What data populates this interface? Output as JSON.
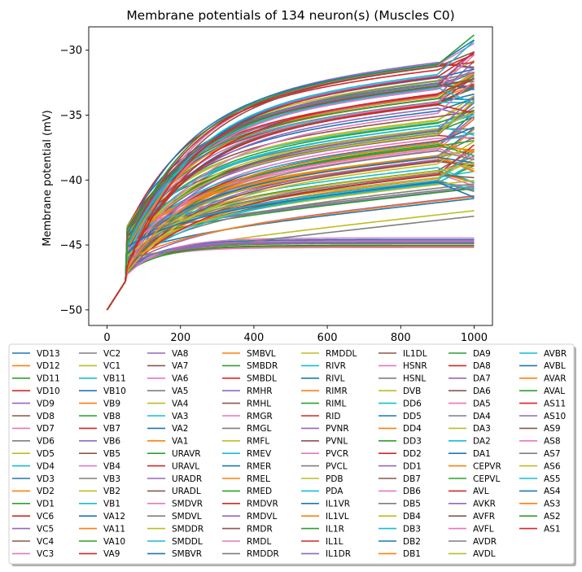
{
  "chart_data": {
    "type": "line",
    "title": "Membrane potentials of 134 neuron(s) (Muscles C0)",
    "xlabel": "",
    "ylabel": "Membrane potential (mV)",
    "xlim": [
      -50,
      1050
    ],
    "ylim": [
      -51.2,
      -28.2
    ],
    "xticks": [
      0,
      200,
      400,
      600,
      800,
      1000
    ],
    "yticks": [
      -50,
      -45,
      -40,
      -35,
      -30
    ],
    "x_tick_labels": [
      "0",
      "200",
      "400",
      "600",
      "800",
      "1000"
    ],
    "y_tick_labels": [
      "−50",
      "−45",
      "−40",
      "−35",
      "−30"
    ],
    "start_value": -50,
    "stimulus_onset": 50,
    "duration": 1000,
    "legend_position": "below",
    "legend_columns": 8,
    "palette": [
      "#1f77b4",
      "#ff7f0e",
      "#2ca02c",
      "#d62728",
      "#9467bd",
      "#8c564b",
      "#e377c2",
      "#7f7f7f",
      "#bcbd22",
      "#17becf"
    ],
    "series": [
      "VD13",
      "VD12",
      "VD11",
      "VD10",
      "VD9",
      "VD8",
      "VD7",
      "VD6",
      "VD5",
      "VD4",
      "VD3",
      "VD2",
      "VD1",
      "VC6",
      "VC5",
      "VC4",
      "VC3",
      "VC2",
      "VC1",
      "VB11",
      "VB10",
      "VB9",
      "VB8",
      "VB7",
      "VB6",
      "VB5",
      "VB4",
      "VB3",
      "VB2",
      "VB1",
      "VA12",
      "VA11",
      "VA10",
      "VA9",
      "VA8",
      "VA7",
      "VA6",
      "VA5",
      "VA4",
      "VA3",
      "VA2",
      "VA1",
      "URAVR",
      "URAVL",
      "URADR",
      "URADL",
      "SMDVR",
      "SMDVL",
      "SMDDR",
      "SMDDL",
      "SMBVR",
      "SMBVL",
      "SMBDR",
      "SMBDL",
      "RMHR",
      "RMHL",
      "RMGR",
      "RMGL",
      "RMFL",
      "RMEV",
      "RMER",
      "RMEL",
      "RMED",
      "RMDVR",
      "RMDVL",
      "RMDR",
      "RMDL",
      "RMDDR",
      "RMDDL",
      "RIVR",
      "RIVL",
      "RIMR",
      "RIML",
      "RID",
      "PVNR",
      "PVNL",
      "PVCR",
      "PVCL",
      "PDB",
      "PDA",
      "IL1VR",
      "IL1VL",
      "IL1R",
      "IL1L",
      "IL1DR",
      "IL1DL",
      "HSNR",
      "HSNL",
      "DVB",
      "DD6",
      "DD5",
      "DD4",
      "DD3",
      "DD2",
      "DD1",
      "DB7",
      "DB6",
      "DB5",
      "DB4",
      "DB3",
      "DB2",
      "DB1",
      "DA9",
      "DA8",
      "DA7",
      "DA6",
      "DA5",
      "DA4",
      "DA3",
      "DA2",
      "DA1",
      "CEPVR",
      "CEPVL",
      "AVL",
      "AVKR",
      "AVFR",
      "AVFL",
      "AVDR",
      "AVDL",
      "AVBR",
      "AVBL",
      "AVAR",
      "AVAL",
      "AS11",
      "AS10",
      "AS9",
      "AS8",
      "AS7",
      "AS6",
      "AS5",
      "AS4",
      "AS3",
      "AS2",
      "AS1"
    ],
    "annotation_end_range_mV": [
      -45.2,
      -29.0
    ]
  }
}
